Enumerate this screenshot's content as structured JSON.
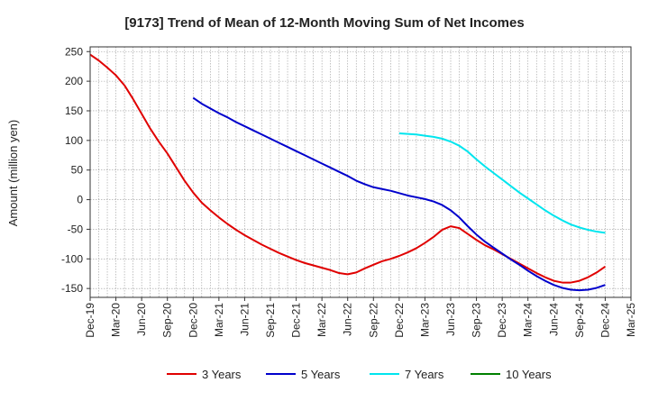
{
  "chart_data": {
    "type": "line",
    "title": "[9173]  Trend of Mean of 12-Month Moving Sum of Net Incomes",
    "xlabel": "",
    "ylabel": "Amount (million yen)",
    "ylim": [
      -165,
      258
    ],
    "yticks": [
      250,
      200,
      150,
      100,
      50,
      0,
      -50,
      -100,
      -150
    ],
    "xticks": [
      "Dec-19",
      "Mar-20",
      "Jun-20",
      "Sep-20",
      "Dec-20",
      "Mar-21",
      "Jun-21",
      "Sep-21",
      "Dec-21",
      "Mar-22",
      "Jun-22",
      "Sep-22",
      "Dec-22",
      "Mar-23",
      "Jun-23",
      "Sep-23",
      "Dec-23",
      "Mar-24",
      "Jun-24",
      "Sep-24",
      "Dec-24",
      "Mar-25"
    ],
    "grid": true,
    "legend_position": "bottom",
    "series": [
      {
        "name": "3 Years",
        "color": "#e00000",
        "points": [
          [
            "Dec-19",
            245
          ],
          [
            "Jan-20",
            235
          ],
          [
            "Feb-20",
            223
          ],
          [
            "Mar-20",
            210
          ],
          [
            "Apr-20",
            193
          ],
          [
            "May-20",
            170
          ],
          [
            "Jun-20",
            145
          ],
          [
            "Jul-20",
            120
          ],
          [
            "Aug-20",
            98
          ],
          [
            "Sep-20",
            78
          ],
          [
            "Oct-20",
            55
          ],
          [
            "Nov-20",
            32
          ],
          [
            "Dec-20",
            12
          ],
          [
            "Jan-21",
            -5
          ],
          [
            "Feb-21",
            -18
          ],
          [
            "Mar-21",
            -30
          ],
          [
            "Apr-21",
            -41
          ],
          [
            "May-21",
            -51
          ],
          [
            "Jun-21",
            -60
          ],
          [
            "Jul-21",
            -68
          ],
          [
            "Aug-21",
            -76
          ],
          [
            "Sep-21",
            -83
          ],
          [
            "Oct-21",
            -90
          ],
          [
            "Nov-21",
            -96
          ],
          [
            "Dec-21",
            -102
          ],
          [
            "Jan-22",
            -107
          ],
          [
            "Feb-22",
            -111
          ],
          [
            "Mar-22",
            -115
          ],
          [
            "Apr-22",
            -119
          ],
          [
            "May-22",
            -124
          ],
          [
            "Jun-22",
            -126
          ],
          [
            "Jul-22",
            -123
          ],
          [
            "Aug-22",
            -116
          ],
          [
            "Sep-22",
            -110
          ],
          [
            "Oct-22",
            -104
          ],
          [
            "Nov-22",
            -100
          ],
          [
            "Dec-22",
            -95
          ],
          [
            "Jan-23",
            -89
          ],
          [
            "Feb-23",
            -82
          ],
          [
            "Mar-23",
            -73
          ],
          [
            "Apr-23",
            -63
          ],
          [
            "May-23",
            -51
          ],
          [
            "Jun-23",
            -45
          ],
          [
            "Jul-23",
            -48
          ],
          [
            "Aug-23",
            -58
          ],
          [
            "Sep-23",
            -68
          ],
          [
            "Oct-23",
            -77
          ],
          [
            "Nov-23",
            -84
          ],
          [
            "Dec-23",
            -92
          ],
          [
            "Jan-24",
            -100
          ],
          [
            "Feb-24",
            -108
          ],
          [
            "Mar-24",
            -116
          ],
          [
            "Apr-24",
            -124
          ],
          [
            "May-24",
            -131
          ],
          [
            "Jun-24",
            -137
          ],
          [
            "Jul-24",
            -140
          ],
          [
            "Aug-24",
            -140
          ],
          [
            "Sep-24",
            -137
          ],
          [
            "Oct-24",
            -131
          ],
          [
            "Nov-24",
            -123
          ],
          [
            "Dec-24",
            -113
          ]
        ]
      },
      {
        "name": "5 Years",
        "color": "#0000cc",
        "points": [
          [
            "Dec-20",
            172
          ],
          [
            "Jan-21",
            162
          ],
          [
            "Feb-21",
            154
          ],
          [
            "Mar-21",
            146
          ],
          [
            "Apr-21",
            139
          ],
          [
            "May-21",
            131
          ],
          [
            "Jun-21",
            124
          ],
          [
            "Jul-21",
            117
          ],
          [
            "Aug-21",
            110
          ],
          [
            "Sep-21",
            103
          ],
          [
            "Oct-21",
            96
          ],
          [
            "Nov-21",
            89
          ],
          [
            "Dec-21",
            82
          ],
          [
            "Jan-22",
            75
          ],
          [
            "Feb-22",
            68
          ],
          [
            "Mar-22",
            61
          ],
          [
            "Apr-22",
            54
          ],
          [
            "May-22",
            47
          ],
          [
            "Jun-22",
            40
          ],
          [
            "Jul-22",
            32
          ],
          [
            "Aug-22",
            26
          ],
          [
            "Sep-22",
            21
          ],
          [
            "Oct-22",
            18
          ],
          [
            "Nov-22",
            15
          ],
          [
            "Dec-22",
            11
          ],
          [
            "Jan-23",
            7
          ],
          [
            "Feb-23",
            4
          ],
          [
            "Mar-23",
            1
          ],
          [
            "Apr-23",
            -3
          ],
          [
            "May-23",
            -9
          ],
          [
            "Jun-23",
            -18
          ],
          [
            "Jul-23",
            -30
          ],
          [
            "Aug-23",
            -45
          ],
          [
            "Sep-23",
            -59
          ],
          [
            "Oct-23",
            -71
          ],
          [
            "Nov-23",
            -81
          ],
          [
            "Dec-23",
            -91
          ],
          [
            "Jan-24",
            -101
          ],
          [
            "Feb-24",
            -110
          ],
          [
            "Mar-24",
            -120
          ],
          [
            "Apr-24",
            -129
          ],
          [
            "May-24",
            -137
          ],
          [
            "Jun-24",
            -144
          ],
          [
            "Jul-24",
            -149
          ],
          [
            "Aug-24",
            -152
          ],
          [
            "Sep-24",
            -153
          ],
          [
            "Oct-24",
            -152
          ],
          [
            "Nov-24",
            -149
          ],
          [
            "Dec-24",
            -144
          ]
        ]
      },
      {
        "name": "7 Years",
        "color": "#00e5ee",
        "points": [
          [
            "Dec-22",
            112
          ],
          [
            "Jan-23",
            111
          ],
          [
            "Feb-23",
            110
          ],
          [
            "Mar-23",
            108
          ],
          [
            "Apr-23",
            106
          ],
          [
            "May-23",
            103
          ],
          [
            "Jun-23",
            98
          ],
          [
            "Jul-23",
            91
          ],
          [
            "Aug-23",
            81
          ],
          [
            "Sep-23",
            68
          ],
          [
            "Oct-23",
            56
          ],
          [
            "Nov-23",
            45
          ],
          [
            "Dec-23",
            34
          ],
          [
            "Jan-24",
            23
          ],
          [
            "Feb-24",
            12
          ],
          [
            "Mar-24",
            2
          ],
          [
            "Apr-24",
            -8
          ],
          [
            "May-24",
            -18
          ],
          [
            "Jun-24",
            -27
          ],
          [
            "Jul-24",
            -35
          ],
          [
            "Aug-24",
            -42
          ],
          [
            "Sep-24",
            -47
          ],
          [
            "Oct-24",
            -51
          ],
          [
            "Nov-24",
            -54
          ],
          [
            "Dec-24",
            -56
          ]
        ]
      },
      {
        "name": "10 Years",
        "color": "#008000",
        "points": []
      }
    ]
  }
}
